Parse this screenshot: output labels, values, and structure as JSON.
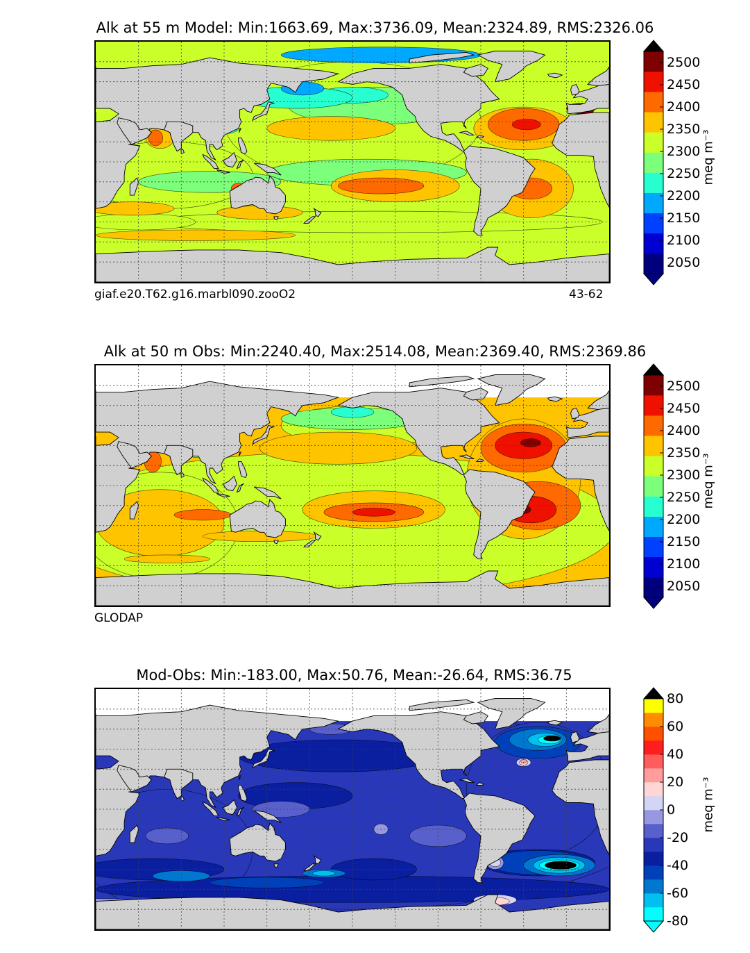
{
  "chart_data": [
    {
      "type": "heatmap",
      "title": "Alk at 55 m Model: Min:1663.69, Max:3736.09, Mean:2324.89, RMS:2326.06",
      "subtitle_left": "giaf.e20.T62.g16.marbl090.zooO2",
      "subtitle_right": "43-62",
      "colorbar": {
        "label": "meq m⁻³",
        "ticks": [
          2050,
          2100,
          2150,
          2200,
          2250,
          2300,
          2350,
          2400,
          2450,
          2500
        ],
        "tick_labels": [
          "2050",
          "2100",
          "2150",
          "2200",
          "2250",
          "2300",
          "2350",
          "2400",
          "2450",
          "2500"
        ],
        "levels": [
          2025,
          2050,
          2075,
          2125,
          2175,
          2225,
          2275,
          2325,
          2375,
          2425,
          2475,
          2525
        ],
        "colors": [
          "#00007f",
          "#0000d0",
          "#0040ff",
          "#00a8ff",
          "#27ffd0",
          "#7cff7a",
          "#caff2a",
          "#ffc400",
          "#ff6a00",
          "#f01000",
          "#7f0000"
        ],
        "extend": "both"
      }
    },
    {
      "type": "heatmap",
      "title": "Alk at 50 m Obs: Min:2240.40, Max:2514.08, Mean:2369.40, RMS:2369.86",
      "subtitle_left": "GLODAP",
      "colorbar": {
        "label": "meq m⁻³",
        "ticks": [
          2050,
          2100,
          2150,
          2200,
          2250,
          2300,
          2350,
          2400,
          2450,
          2500
        ],
        "tick_labels": [
          "2050",
          "2100",
          "2150",
          "2200",
          "2250",
          "2300",
          "2350",
          "2400",
          "2450",
          "2500"
        ],
        "levels": [
          2025,
          2050,
          2075,
          2125,
          2175,
          2225,
          2275,
          2325,
          2375,
          2425,
          2475,
          2525
        ],
        "colors": [
          "#00007f",
          "#0000d0",
          "#0040ff",
          "#00a8ff",
          "#27ffd0",
          "#7cff7a",
          "#caff2a",
          "#ffc400",
          "#ff6a00",
          "#f01000",
          "#7f0000"
        ],
        "extend": "both"
      }
    },
    {
      "type": "heatmap",
      "title": "Mod-Obs: Min:-183.00, Max:50.76, Mean:-26.64, RMS:36.75",
      "colorbar": {
        "label": "meq m⁻³",
        "ticks": [
          -80,
          -60,
          -40,
          -20,
          0,
          20,
          40,
          60,
          80
        ],
        "tick_labels": [
          "-80",
          "-60",
          "-40",
          "-20",
          "0",
          "20",
          "40",
          "60",
          "80"
        ],
        "levels": [
          -80,
          -70,
          -60,
          -50,
          -40,
          -30,
          -20,
          -10,
          0,
          10,
          20,
          30,
          40,
          50,
          60,
          70,
          80
        ],
        "colors": [
          "#00ffff",
          "#00c0f0",
          "#0078d0",
          "#0040b8",
          "#0a1ea0",
          "#2838b8",
          "#5860cc",
          "#9898e0",
          "#d4d4f4",
          "#ffd6d6",
          "#ff9c9c",
          "#ff5c5c",
          "#ff1e1e",
          "#ff5000",
          "#ff8c00",
          "#ffff00"
        ],
        "extend": "both"
      }
    }
  ],
  "colors": {
    "land": "#d0d0d0",
    "missing": "#ffffff",
    "grid": "#404040",
    "coast": "#000000",
    "under_model": "#00007f",
    "over_model": "#000000",
    "under_diff": "#00ffff",
    "over_diff": "#000000"
  }
}
